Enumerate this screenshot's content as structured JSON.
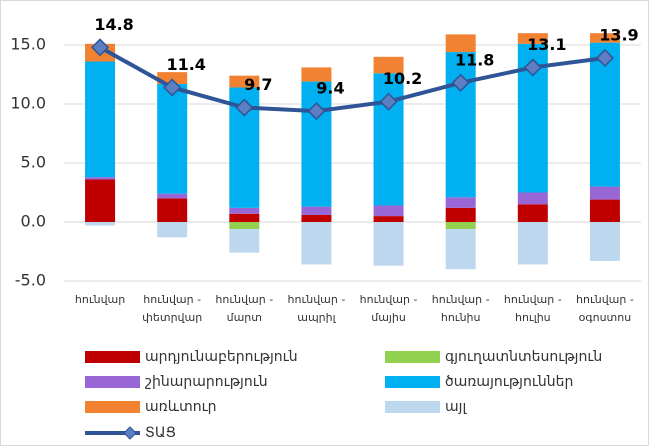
{
  "chart_data": {
    "type": "bar",
    "categories": [
      "հունվար",
      "հունվար - փետրվար",
      "հունվար - մարտ",
      "հունվար - ապրիլ",
      "հունվար - մայիս",
      "հունվար - հունիս",
      "հունվար - հուլիս",
      "հունվար - օգոստոս"
    ],
    "series": [
      {
        "name": "արդյունաբերություն",
        "color": "#c00000",
        "values": [
          3.6,
          2.0,
          0.7,
          0.6,
          0.5,
          1.2,
          1.5,
          1.9
        ]
      },
      {
        "name": "գյուղատնտեսություն",
        "color": "#92d050",
        "values": [
          0,
          0,
          -0.6,
          0,
          0,
          -0.6,
          0,
          0
        ]
      },
      {
        "name": "շինարարություն",
        "color": "#9966d6",
        "values": [
          0.2,
          0.4,
          0.5,
          0.7,
          0.9,
          0.9,
          1.0,
          1.1
        ]
      },
      {
        "name": "ծառայություններ",
        "color": "#00b0f0",
        "values": [
          9.8,
          9.3,
          10.2,
          10.6,
          11.2,
          12.3,
          12.6,
          12.2
        ]
      },
      {
        "name": "առևտուր",
        "color": "#f08232",
        "values": [
          1.5,
          1.0,
          1.0,
          1.2,
          1.4,
          1.5,
          0.9,
          0.8
        ]
      },
      {
        "name": "այլ",
        "color": "#bdd7ee",
        "values": [
          -0.3,
          -1.3,
          -2.0,
          -3.6,
          -3.7,
          -3.4,
          -3.6,
          -3.3
        ]
      },
      {
        "name": "ՏԱՑ",
        "type": "line",
        "color": "#2f5597",
        "marker_color": "#5b7fc2",
        "values": [
          14.8,
          11.4,
          9.7,
          9.4,
          10.2,
          11.8,
          13.1,
          13.9
        ]
      }
    ],
    "ylim": [
      -5,
      17.5
    ],
    "yticks": [
      {
        "value": -5,
        "label": "-5.0"
      },
      {
        "value": 0,
        "label": "0.0"
      },
      {
        "value": 5,
        "label": "5.0"
      },
      {
        "value": 10,
        "label": "10.0"
      },
      {
        "value": 15,
        "label": "15.0"
      }
    ],
    "grid": true,
    "stacked": true,
    "legend": "bottom"
  }
}
